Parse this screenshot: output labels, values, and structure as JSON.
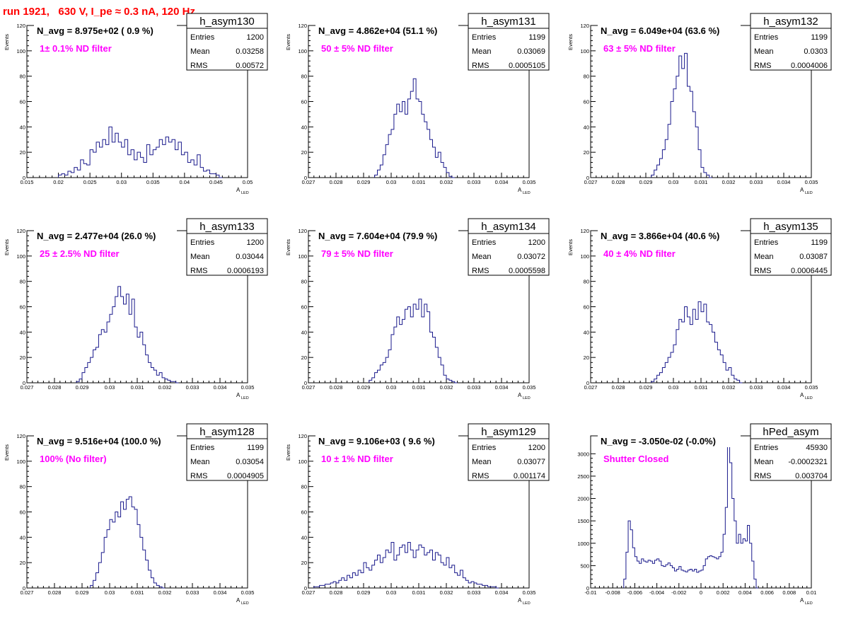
{
  "page_title": "run 1921,   630 V, I_pe ≈ 0.3 nA, 120 Hz",
  "colors": {
    "hist_line": "#1a1a8c",
    "annotation": "#ff00ff",
    "title": "#ff0000",
    "axis": "#000000"
  },
  "chart_data": [
    {
      "type": "histogram",
      "name": "h_asym130",
      "navg": "N_avg = 8.975e+02 ( 0.9 %)",
      "note": "1± 0.1% ND filter",
      "stats": [
        [
          "Entries",
          "1200"
        ],
        [
          "Mean",
          "0.03258"
        ],
        [
          "RMS",
          "0.00572"
        ]
      ],
      "xlim": [
        0.015,
        0.05
      ],
      "ylim": [
        0,
        120
      ],
      "xticks": [
        "0.015",
        "0.02",
        "0.025",
        "0.03",
        "0.035",
        "0.04",
        "0.045",
        "0.05"
      ],
      "yticks": [
        "0",
        "20",
        "40",
        "60",
        "80",
        "100",
        "120"
      ],
      "xlabel": "A",
      "xlabel_sub": "LED",
      "ylabel": "Events",
      "bin_width": 0.0005,
      "x": [
        0.02,
        0.0205,
        0.021,
        0.0215,
        0.022,
        0.0225,
        0.023,
        0.0235,
        0.024,
        0.0245,
        0.025,
        0.0255,
        0.026,
        0.0265,
        0.027,
        0.0275,
        0.028,
        0.0285,
        0.029,
        0.0295,
        0.03,
        0.0305,
        0.031,
        0.0315,
        0.032,
        0.0325,
        0.033,
        0.0335,
        0.034,
        0.0345,
        0.035,
        0.0355,
        0.036,
        0.0365,
        0.037,
        0.0375,
        0.038,
        0.0385,
        0.039,
        0.0395,
        0.04,
        0.0405,
        0.041,
        0.0415,
        0.042,
        0.0425,
        0.043,
        0.0435,
        0.044,
        0.0445,
        0.045,
        0.0455
      ],
      "values": [
        2,
        3,
        2,
        5,
        4,
        8,
        6,
        14,
        11,
        10,
        22,
        20,
        28,
        24,
        30,
        26,
        40,
        28,
        35,
        28,
        24,
        30,
        18,
        22,
        14,
        20,
        16,
        12,
        26,
        18,
        22,
        24,
        30,
        26,
        32,
        28,
        30,
        22,
        28,
        18,
        20,
        12,
        14,
        10,
        18,
        8,
        5,
        6,
        3,
        3,
        2,
        0
      ]
    },
    {
      "type": "histogram",
      "name": "h_asym131",
      "navg": "N_avg = 4.862e+04 (51.1 %)",
      "note": "50 ± 5% ND filter",
      "stats": [
        [
          "Entries",
          "1199"
        ],
        [
          "Mean",
          "0.03069"
        ],
        [
          "RMS",
          "0.0005105"
        ]
      ],
      "xlim": [
        0.027,
        0.035
      ],
      "ylim": [
        0,
        120
      ],
      "xticks": [
        "0.027",
        "0.028",
        "0.029",
        "0.03",
        "0.031",
        "0.032",
        "0.033",
        "0.034",
        "0.035"
      ],
      "yticks": [
        "0",
        "20",
        "40",
        "60",
        "80",
        "100",
        "120"
      ],
      "xlabel": "A",
      "xlabel_sub": "LED",
      "ylabel": "Events",
      "bin_width": 0.0001,
      "x": [
        0.0294,
        0.0295,
        0.0296,
        0.0297,
        0.0298,
        0.0299,
        0.03,
        0.0301,
        0.0302,
        0.0303,
        0.0304,
        0.0305,
        0.0306,
        0.0307,
        0.0308,
        0.0309,
        0.031,
        0.0311,
        0.0312,
        0.0313,
        0.0314,
        0.0315,
        0.0316,
        0.0317,
        0.0318,
        0.0319,
        0.032,
        0.0321,
        0.0322
      ],
      "values": [
        2,
        6,
        10,
        18,
        26,
        34,
        38,
        50,
        58,
        52,
        60,
        50,
        62,
        68,
        78,
        62,
        60,
        50,
        44,
        38,
        30,
        24,
        16,
        20,
        12,
        8,
        4,
        1,
        0
      ]
    },
    {
      "type": "histogram",
      "name": "h_asym132",
      "navg": "N_avg = 6.049e+04 (63.6 %)",
      "note": "63 ± 5% ND filter",
      "stats": [
        [
          "Entries",
          "1199"
        ],
        [
          "Mean",
          "0.0303"
        ],
        [
          "RMS",
          "0.0004006"
        ]
      ],
      "xlim": [
        0.027,
        0.035
      ],
      "ylim": [
        0,
        120
      ],
      "xticks": [
        "0.027",
        "0.028",
        "0.029",
        "0.03",
        "0.031",
        "0.032",
        "0.033",
        "0.034",
        "0.035"
      ],
      "yticks": [
        "0",
        "20",
        "40",
        "60",
        "80",
        "100",
        "120"
      ],
      "xlabel": "A",
      "xlabel_sub": "LED",
      "ylabel": "Events",
      "bin_width": 0.0001,
      "x": [
        0.0292,
        0.0293,
        0.0294,
        0.0295,
        0.0296,
        0.0297,
        0.0298,
        0.0299,
        0.03,
        0.0301,
        0.0302,
        0.0303,
        0.0304,
        0.0305,
        0.0306,
        0.0307,
        0.0308,
        0.0309,
        0.031,
        0.0311,
        0.0312,
        0.0313
      ],
      "values": [
        2,
        6,
        10,
        15,
        22,
        30,
        42,
        60,
        70,
        80,
        96,
        86,
        98,
        72,
        68,
        52,
        40,
        22,
        8,
        4,
        2,
        0
      ]
    },
    {
      "type": "histogram",
      "name": "h_asym133",
      "navg": "N_avg = 2.477e+04 (26.0 %)",
      "note": "25 ± 2.5% ND filter",
      "stats": [
        [
          "Entries",
          "1200"
        ],
        [
          "Mean",
          "0.03044"
        ],
        [
          "RMS",
          "0.0006193"
        ]
      ],
      "xlim": [
        0.027,
        0.035
      ],
      "ylim": [
        0,
        120
      ],
      "xticks": [
        "0.027",
        "0.028",
        "0.029",
        "0.03",
        "0.031",
        "0.032",
        "0.033",
        "0.034",
        "0.035"
      ],
      "yticks": [
        "0",
        "20",
        "40",
        "60",
        "80",
        "100",
        "120"
      ],
      "xlabel": "A",
      "xlabel_sub": "LED",
      "ylabel": "Events",
      "bin_width": 0.0001,
      "x": [
        0.0288,
        0.0289,
        0.029,
        0.0291,
        0.0292,
        0.0293,
        0.0294,
        0.0295,
        0.0296,
        0.0297,
        0.0298,
        0.0299,
        0.03,
        0.0301,
        0.0302,
        0.0303,
        0.0304,
        0.0305,
        0.0306,
        0.0307,
        0.0308,
        0.0309,
        0.031,
        0.0311,
        0.0312,
        0.0313,
        0.0314,
        0.0315,
        0.0316,
        0.0317,
        0.0318,
        0.0319,
        0.032,
        0.0321,
        0.0322,
        0.0323,
        0.0324
      ],
      "values": [
        1,
        3,
        8,
        12,
        16,
        20,
        26,
        28,
        38,
        42,
        40,
        48,
        54,
        60,
        68,
        76,
        68,
        62,
        70,
        54,
        66,
        44,
        36,
        40,
        30,
        22,
        16,
        12,
        10,
        6,
        8,
        4,
        3,
        2,
        1,
        1,
        0
      ]
    },
    {
      "type": "histogram",
      "name": "h_asym134",
      "navg": "N_avg = 7.604e+04 (79.9 %)",
      "note": "79 ± 5% ND filter",
      "stats": [
        [
          "Entries",
          "1200"
        ],
        [
          "Mean",
          "0.03072"
        ],
        [
          "RMS",
          "0.0005598"
        ]
      ],
      "xlim": [
        0.027,
        0.035
      ],
      "ylim": [
        0,
        120
      ],
      "xticks": [
        "0.027",
        "0.028",
        "0.029",
        "0.03",
        "0.031",
        "0.032",
        "0.033",
        "0.034",
        "0.035"
      ],
      "yticks": [
        "0",
        "20",
        "40",
        "60",
        "80",
        "100",
        "120"
      ],
      "xlabel": "A",
      "xlabel_sub": "LED",
      "ylabel": "Events",
      "bin_width": 0.0001,
      "x": [
        0.0292,
        0.0293,
        0.0294,
        0.0295,
        0.0296,
        0.0297,
        0.0298,
        0.0299,
        0.03,
        0.0301,
        0.0302,
        0.0303,
        0.0304,
        0.0305,
        0.0306,
        0.0307,
        0.0308,
        0.0309,
        0.031,
        0.0311,
        0.0312,
        0.0313,
        0.0314,
        0.0315,
        0.0316,
        0.0317,
        0.0318,
        0.0319,
        0.032,
        0.0321,
        0.0322,
        0.0323
      ],
      "values": [
        2,
        4,
        8,
        10,
        14,
        16,
        20,
        26,
        38,
        44,
        52,
        46,
        50,
        58,
        60,
        52,
        62,
        58,
        66,
        52,
        62,
        56,
        40,
        36,
        28,
        20,
        14,
        6,
        3,
        2,
        1,
        0
      ]
    },
    {
      "type": "histogram",
      "name": "h_asym135",
      "navg": "N_avg = 3.866e+04 (40.6 %)",
      "note": "40 ± 4% ND filter",
      "stats": [
        [
          "Entries",
          "1199"
        ],
        [
          "Mean",
          "0.03087"
        ],
        [
          "RMS",
          "0.0006445"
        ]
      ],
      "xlim": [
        0.027,
        0.035
      ],
      "ylim": [
        0,
        120
      ],
      "xticks": [
        "0.027",
        "0.028",
        "0.029",
        "0.03",
        "0.031",
        "0.032",
        "0.033",
        "0.034",
        "0.035"
      ],
      "yticks": [
        "0",
        "20",
        "40",
        "60",
        "80",
        "100",
        "120"
      ],
      "xlabel": "A",
      "xlabel_sub": "LED",
      "ylabel": "Events",
      "bin_width": 0.0001,
      "x": [
        0.0292,
        0.0293,
        0.0294,
        0.0295,
        0.0296,
        0.0297,
        0.0298,
        0.0299,
        0.03,
        0.0301,
        0.0302,
        0.0303,
        0.0304,
        0.0305,
        0.0306,
        0.0307,
        0.0308,
        0.0309,
        0.031,
        0.0311,
        0.0312,
        0.0313,
        0.0314,
        0.0315,
        0.0316,
        0.0317,
        0.0318,
        0.0319,
        0.032,
        0.0321,
        0.0322,
        0.0323,
        0.0324
      ],
      "values": [
        1,
        3,
        6,
        8,
        12,
        16,
        20,
        24,
        30,
        42,
        50,
        48,
        60,
        52,
        46,
        58,
        50,
        64,
        56,
        62,
        48,
        46,
        40,
        32,
        26,
        22,
        16,
        10,
        12,
        6,
        3,
        2,
        0
      ]
    },
    {
      "type": "histogram",
      "name": "h_asym128",
      "navg": "N_avg = 9.516e+04 (100.0 %)",
      "note": "100% (No filter)",
      "stats": [
        [
          "Entries",
          "1199"
        ],
        [
          "Mean",
          "0.03054"
        ],
        [
          "RMS",
          "0.0004905"
        ]
      ],
      "xlim": [
        0.027,
        0.035
      ],
      "ylim": [
        0,
        120
      ],
      "xticks": [
        "0.027",
        "0.028",
        "0.029",
        "0.03",
        "0.031",
        "0.032",
        "0.033",
        "0.034",
        "0.035"
      ],
      "yticks": [
        "0",
        "20",
        "40",
        "60",
        "80",
        "100",
        "120"
      ],
      "xlabel": "A",
      "xlabel_sub": "LED",
      "ylabel": "Events",
      "bin_width": 0.0001,
      "x": [
        0.0293,
        0.0294,
        0.0295,
        0.0296,
        0.0297,
        0.0298,
        0.0299,
        0.03,
        0.0301,
        0.0302,
        0.0303,
        0.0304,
        0.0305,
        0.0306,
        0.0307,
        0.0308,
        0.0309,
        0.031,
        0.0311,
        0.0312,
        0.0313,
        0.0314,
        0.0315,
        0.0316,
        0.0317,
        0.0318,
        0.0319
      ],
      "values": [
        2,
        6,
        12,
        20,
        28,
        40,
        46,
        54,
        52,
        60,
        56,
        68,
        62,
        70,
        72,
        64,
        62,
        50,
        40,
        30,
        22,
        14,
        8,
        4,
        2,
        1,
        0
      ]
    },
    {
      "type": "histogram",
      "name": "h_asym129",
      "navg": "N_avg = 9.106e+03 ( 9.6 %)",
      "note": "10 ± 1% ND filter",
      "stats": [
        [
          "Entries",
          "1200"
        ],
        [
          "Mean",
          "0.03077"
        ],
        [
          "RMS",
          "0.001174"
        ]
      ],
      "xlim": [
        0.027,
        0.035
      ],
      "ylim": [
        0,
        120
      ],
      "xticks": [
        "0.027",
        "0.028",
        "0.029",
        "0.03",
        "0.031",
        "0.032",
        "0.033",
        "0.034",
        "0.035"
      ],
      "yticks": [
        "0",
        "20",
        "40",
        "60",
        "80",
        "100",
        "120"
      ],
      "xlabel": "A",
      "xlabel_sub": "LED",
      "ylabel": "Events",
      "bin_width": 0.0001,
      "x": [
        0.0272,
        0.0273,
        0.0274,
        0.0275,
        0.0276,
        0.0277,
        0.0278,
        0.0279,
        0.028,
        0.0281,
        0.0282,
        0.0283,
        0.0284,
        0.0285,
        0.0286,
        0.0287,
        0.0288,
        0.0289,
        0.029,
        0.0291,
        0.0292,
        0.0293,
        0.0294,
        0.0295,
        0.0296,
        0.0297,
        0.0298,
        0.0299,
        0.03,
        0.0301,
        0.0302,
        0.0303,
        0.0304,
        0.0305,
        0.0306,
        0.0307,
        0.0308,
        0.0309,
        0.031,
        0.0311,
        0.0312,
        0.0313,
        0.0314,
        0.0315,
        0.0316,
        0.0317,
        0.0318,
        0.0319,
        0.032,
        0.0321,
        0.0322,
        0.0323,
        0.0324,
        0.0325,
        0.0326,
        0.0327,
        0.0328,
        0.0329,
        0.033,
        0.0331,
        0.0332,
        0.0333,
        0.0334,
        0.0335,
        0.0336,
        0.0337,
        0.0338
      ],
      "values": [
        1,
        1,
        2,
        2,
        3,
        3,
        4,
        5,
        4,
        6,
        8,
        6,
        10,
        8,
        12,
        10,
        14,
        12,
        20,
        16,
        14,
        18,
        22,
        26,
        20,
        24,
        30,
        28,
        36,
        22,
        26,
        32,
        34,
        28,
        36,
        30,
        24,
        30,
        34,
        32,
        26,
        28,
        30,
        22,
        28,
        26,
        20,
        18,
        24,
        16,
        18,
        12,
        10,
        14,
        8,
        6,
        4,
        5,
        4,
        3,
        3,
        2,
        2,
        1,
        1,
        1,
        0
      ]
    },
    {
      "type": "histogram",
      "name": "hPed_asym",
      "navg": "N_avg = -3.050e-02 (-0.0%)",
      "note": "Shutter Closed",
      "stats": [
        [
          "Entries",
          "45930"
        ],
        [
          "Mean",
          "-0.0002321"
        ],
        [
          "RMS",
          "0.003704"
        ]
      ],
      "xlim": [
        -0.01,
        0.01
      ],
      "ylim": [
        0,
        3400
      ],
      "xticks": [
        "-0.01",
        "-0.008",
        "-0.006",
        "-0.004",
        "-0.002",
        "0",
        "0.002",
        "0.004",
        "0.006",
        "0.008",
        "0.01"
      ],
      "yticks": [
        "0",
        "500",
        "1000",
        "1500",
        "2000",
        "2500",
        "3000"
      ],
      "xlabel": "A",
      "xlabel_sub": "LED",
      "ylabel": "",
      "bin_width": 0.0002,
      "x": [
        -0.007,
        -0.0068,
        -0.0066,
        -0.0064,
        -0.0062,
        -0.006,
        -0.0058,
        -0.0056,
        -0.0054,
        -0.0052,
        -0.005,
        -0.0048,
        -0.0046,
        -0.0044,
        -0.0042,
        -0.004,
        -0.0038,
        -0.0036,
        -0.0034,
        -0.0032,
        -0.003,
        -0.0028,
        -0.0026,
        -0.0024,
        -0.0022,
        -0.002,
        -0.0018,
        -0.0016,
        -0.0014,
        -0.0012,
        -0.001,
        -0.0008,
        -0.0006,
        -0.0004,
        -0.0002,
        0.0,
        0.0002,
        0.0004,
        0.0006,
        0.0008,
        0.001,
        0.0012,
        0.0014,
        0.0016,
        0.0018,
        0.002,
        0.0022,
        0.0024,
        0.0026,
        0.0028,
        0.003,
        0.0032,
        0.0034,
        0.0036,
        0.0038,
        0.004,
        0.0042,
        0.0044,
        0.0046,
        0.0048,
        0.005
      ],
      "values": [
        200,
        800,
        1500,
        1300,
        900,
        700,
        600,
        550,
        650,
        600,
        580,
        620,
        600,
        550,
        620,
        650,
        600,
        500,
        480,
        520,
        560,
        500,
        450,
        380,
        420,
        480,
        400,
        380,
        360,
        400,
        420,
        380,
        420,
        350,
        380,
        400,
        500,
        650,
        700,
        720,
        700,
        680,
        650,
        700,
        800,
        1200,
        1800,
        3350,
        2800,
        2000,
        1500,
        1000,
        1200,
        1000,
        1100,
        1050,
        1400,
        1000,
        600,
        200,
        0
      ]
    }
  ]
}
